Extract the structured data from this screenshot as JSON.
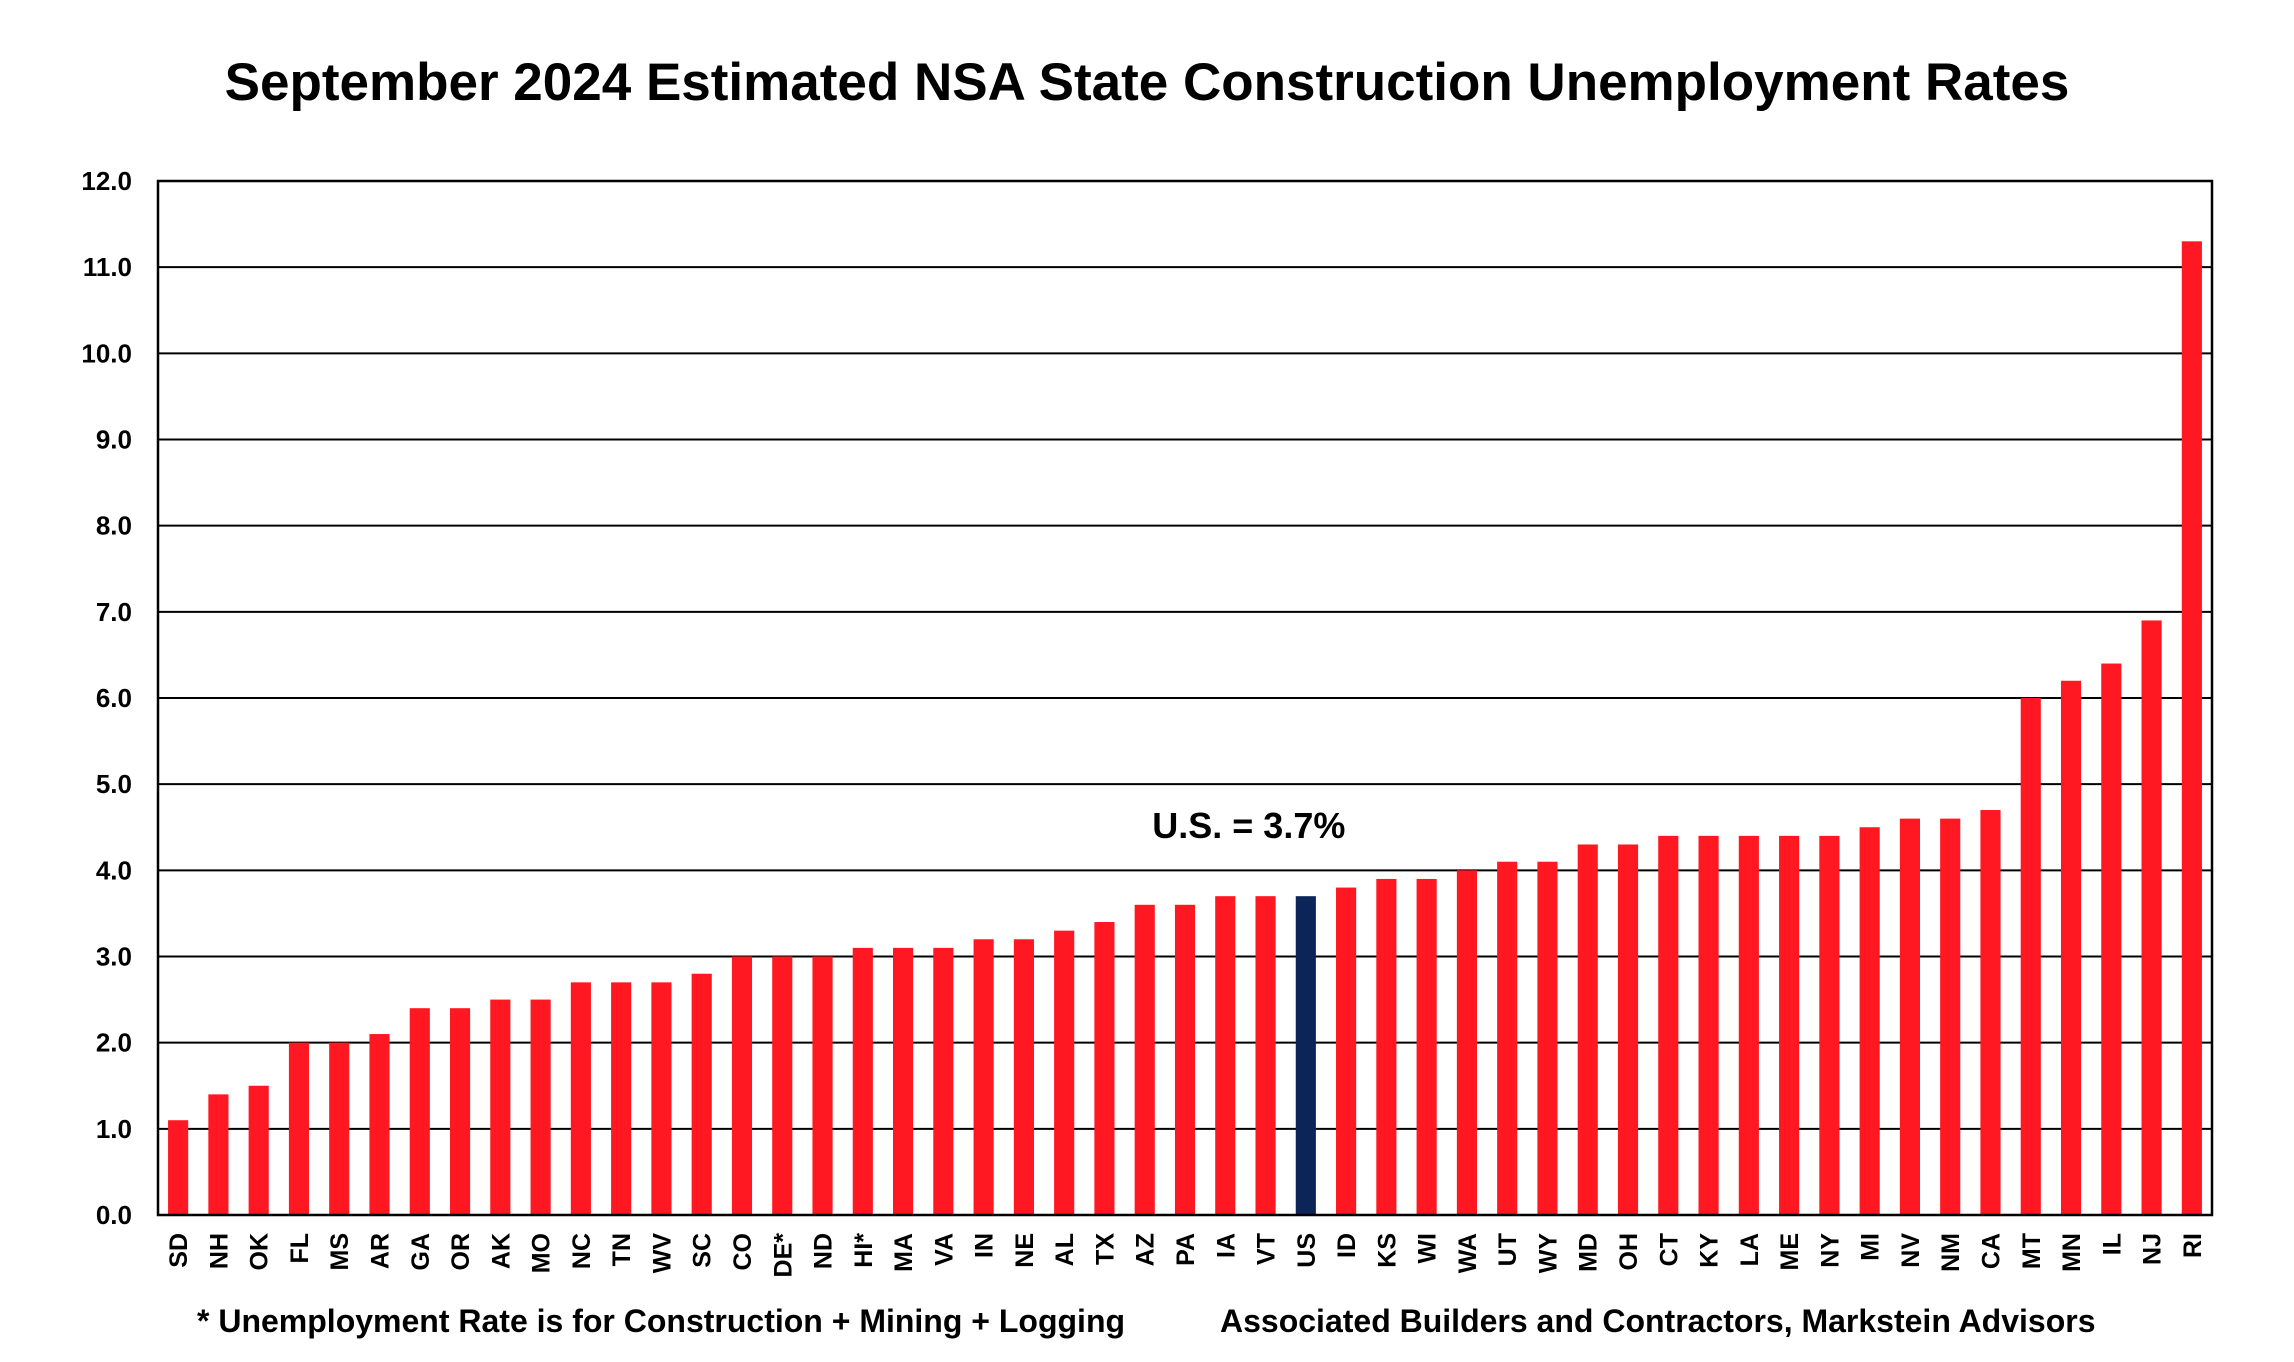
{
  "chart_data": {
    "type": "bar",
    "title": "September 2024 Estimated NSA State Construction Unemployment Rates",
    "xlabel": "",
    "ylabel": "",
    "ylim": [
      0,
      12
    ],
    "yticks": [
      "0.0",
      "1.0",
      "2.0",
      "3.0",
      "4.0",
      "5.0",
      "6.0",
      "7.0",
      "8.0",
      "9.0",
      "10.0",
      "11.0",
      "12.0"
    ],
    "grid": true,
    "categories": [
      "SD",
      "NH",
      "OK",
      "FL",
      "MS",
      "AR",
      "GA",
      "OR",
      "AK",
      "MO",
      "NC",
      "TN",
      "WV",
      "SC",
      "CO",
      "DE*",
      "ND",
      "HI*",
      "MA",
      "VA",
      "IN",
      "NE",
      "AL",
      "TX",
      "AZ",
      "PA",
      "IA",
      "VT",
      "US",
      "ID",
      "KS",
      "WI",
      "WA",
      "UT",
      "WY",
      "MD",
      "OH",
      "CT",
      "KY",
      "LA",
      "ME",
      "NY",
      "MI",
      "NV",
      "NM",
      "CA",
      "MT",
      "MN",
      "IL",
      "NJ",
      "RI"
    ],
    "values": [
      1.1,
      1.4,
      1.5,
      2.0,
      2.0,
      2.1,
      2.4,
      2.4,
      2.5,
      2.5,
      2.7,
      2.7,
      2.7,
      2.8,
      3.0,
      3.0,
      3.0,
      3.1,
      3.1,
      3.1,
      3.2,
      3.2,
      3.3,
      3.4,
      3.6,
      3.6,
      3.7,
      3.7,
      3.7,
      3.8,
      3.9,
      3.9,
      4.0,
      4.1,
      4.1,
      4.3,
      4.3,
      4.4,
      4.4,
      4.4,
      4.4,
      4.4,
      4.5,
      4.6,
      4.6,
      4.7,
      6.0,
      6.2,
      6.4,
      6.9,
      11.3
    ],
    "highlight_category": "US",
    "colors": {
      "bar": "#ff1721",
      "highlight": "#0d2459",
      "grid": "#000000"
    },
    "annotations": [
      {
        "text": "U.S. = 3.7%",
        "target": "US"
      }
    ]
  },
  "footnotes": {
    "left": "* Unemployment Rate is for Construction + Mining + Logging",
    "right": "Associated Builders and Contractors, Markstein Advisors"
  }
}
